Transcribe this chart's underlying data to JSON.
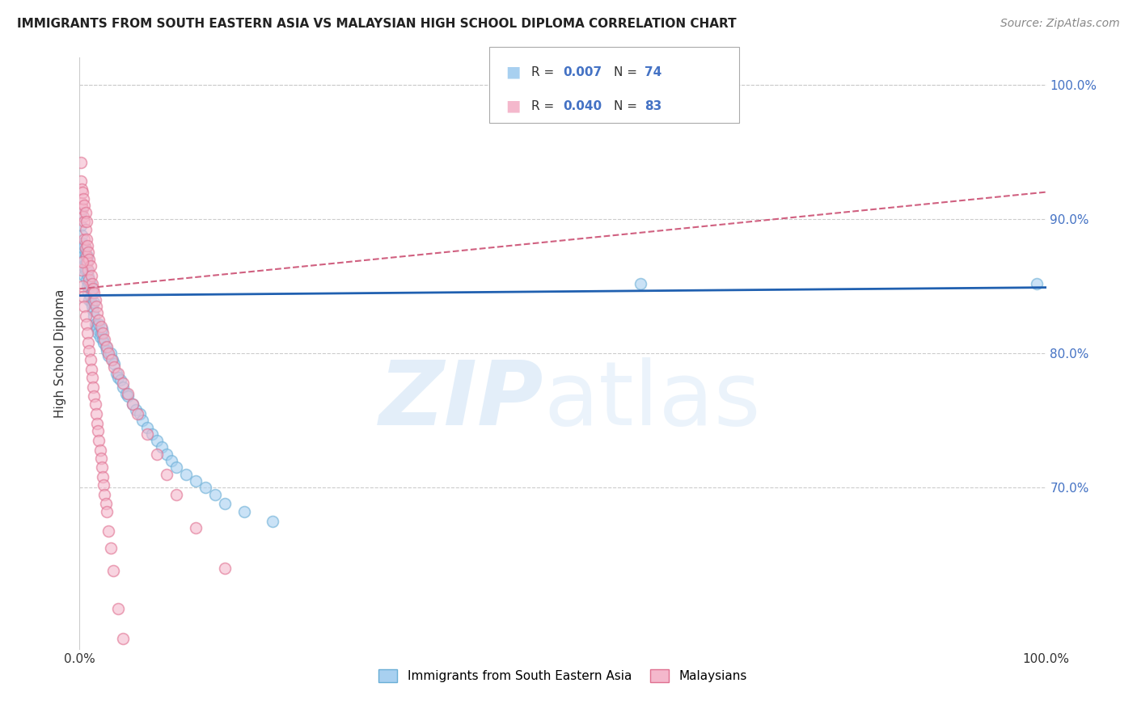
{
  "title": "IMMIGRANTS FROM SOUTH EASTERN ASIA VS MALAYSIAN HIGH SCHOOL DIPLOMA CORRELATION CHART",
  "source": "Source: ZipAtlas.com",
  "ylabel": "High School Diploma",
  "blue_color": "#a8d0f0",
  "blue_edge_color": "#6aaed6",
  "pink_color": "#f4b8cc",
  "pink_edge_color": "#e07090",
  "blue_line_color": "#2060b0",
  "pink_line_color": "#d06080",
  "right_tick_color": "#4472c4",
  "blue_scatter_x": [
    0.0,
    0.001,
    0.001,
    0.002,
    0.002,
    0.003,
    0.003,
    0.004,
    0.004,
    0.005,
    0.005,
    0.005,
    0.006,
    0.006,
    0.007,
    0.007,
    0.008,
    0.008,
    0.008,
    0.009,
    0.009,
    0.01,
    0.01,
    0.011,
    0.011,
    0.012,
    0.012,
    0.013,
    0.013,
    0.014,
    0.015,
    0.015,
    0.016,
    0.017,
    0.018,
    0.019,
    0.02,
    0.021,
    0.022,
    0.023,
    0.024,
    0.025,
    0.027,
    0.028,
    0.03,
    0.032,
    0.034,
    0.036,
    0.038,
    0.04,
    0.042,
    0.045,
    0.048,
    0.05,
    0.055,
    0.058,
    0.062,
    0.065,
    0.07,
    0.075,
    0.08,
    0.085,
    0.09,
    0.095,
    0.1,
    0.11,
    0.12,
    0.13,
    0.14,
    0.15,
    0.17,
    0.2,
    0.58,
    0.99
  ],
  "blue_scatter_y": [
    0.88,
    0.895,
    0.905,
    0.875,
    0.888,
    0.872,
    0.882,
    0.865,
    0.878,
    0.858,
    0.87,
    0.88,
    0.862,
    0.874,
    0.855,
    0.868,
    0.85,
    0.862,
    0.872,
    0.845,
    0.857,
    0.84,
    0.852,
    0.842,
    0.852,
    0.838,
    0.848,
    0.835,
    0.845,
    0.832,
    0.828,
    0.838,
    0.822,
    0.82,
    0.818,
    0.815,
    0.822,
    0.812,
    0.815,
    0.818,
    0.81,
    0.808,
    0.805,
    0.802,
    0.798,
    0.8,
    0.795,
    0.792,
    0.785,
    0.782,
    0.78,
    0.775,
    0.77,
    0.768,
    0.762,
    0.758,
    0.755,
    0.75,
    0.745,
    0.74,
    0.735,
    0.73,
    0.725,
    0.72,
    0.715,
    0.71,
    0.705,
    0.7,
    0.695,
    0.688,
    0.682,
    0.675,
    0.852,
    0.852
  ],
  "pink_scatter_x": [
    0.001,
    0.001,
    0.002,
    0.002,
    0.003,
    0.003,
    0.004,
    0.004,
    0.005,
    0.005,
    0.005,
    0.006,
    0.006,
    0.006,
    0.007,
    0.007,
    0.007,
    0.008,
    0.008,
    0.009,
    0.009,
    0.01,
    0.01,
    0.011,
    0.012,
    0.013,
    0.014,
    0.015,
    0.016,
    0.017,
    0.018,
    0.02,
    0.022,
    0.024,
    0.026,
    0.028,
    0.03,
    0.033,
    0.036,
    0.04,
    0.045,
    0.05,
    0.055,
    0.06,
    0.07,
    0.08,
    0.09,
    0.1,
    0.12,
    0.15,
    0.003,
    0.004,
    0.005,
    0.006,
    0.007,
    0.008,
    0.009,
    0.01,
    0.011,
    0.012,
    0.013,
    0.014,
    0.015,
    0.016,
    0.017,
    0.018,
    0.019,
    0.02,
    0.021,
    0.022,
    0.023,
    0.024,
    0.025,
    0.026,
    0.027,
    0.028,
    0.03,
    0.032,
    0.035,
    0.04,
    0.045,
    0.002,
    0.003
  ],
  "pink_scatter_y": [
    0.942,
    0.928,
    0.922,
    0.912,
    0.92,
    0.908,
    0.915,
    0.902,
    0.91,
    0.898,
    0.885,
    0.905,
    0.892,
    0.878,
    0.898,
    0.885,
    0.872,
    0.88,
    0.868,
    0.875,
    0.862,
    0.87,
    0.855,
    0.865,
    0.858,
    0.852,
    0.848,
    0.845,
    0.84,
    0.835,
    0.83,
    0.825,
    0.82,
    0.815,
    0.81,
    0.805,
    0.8,
    0.795,
    0.79,
    0.785,
    0.778,
    0.77,
    0.762,
    0.755,
    0.74,
    0.725,
    0.71,
    0.695,
    0.67,
    0.64,
    0.85,
    0.842,
    0.835,
    0.828,
    0.822,
    0.815,
    0.808,
    0.802,
    0.795,
    0.788,
    0.782,
    0.775,
    0.768,
    0.762,
    0.755,
    0.748,
    0.742,
    0.735,
    0.728,
    0.722,
    0.715,
    0.708,
    0.702,
    0.695,
    0.688,
    0.682,
    0.668,
    0.655,
    0.638,
    0.61,
    0.588,
    0.862,
    0.868
  ],
  "xlim": [
    0.0,
    1.0
  ],
  "ylim": [
    0.58,
    1.02
  ],
  "x_ticks": [
    0.0,
    0.2,
    0.4,
    0.6,
    0.8,
    1.0
  ],
  "x_tick_labels": [
    "0.0%",
    "",
    "",
    "",
    "",
    "100.0%"
  ],
  "y_ticks": [
    0.7,
    0.8,
    0.9,
    1.0
  ],
  "y_tick_labels_right": [
    "70.0%",
    "80.0%",
    "90.0%",
    "100.0%"
  ],
  "grid_color": "#cccccc",
  "grid_style": "--",
  "marker_size": 100,
  "marker_alpha": 0.6,
  "blue_line_y_at_0": 0.843,
  "blue_line_y_at_1": 0.849,
  "pink_line_y_at_0": 0.848,
  "pink_line_y_at_1": 0.92
}
